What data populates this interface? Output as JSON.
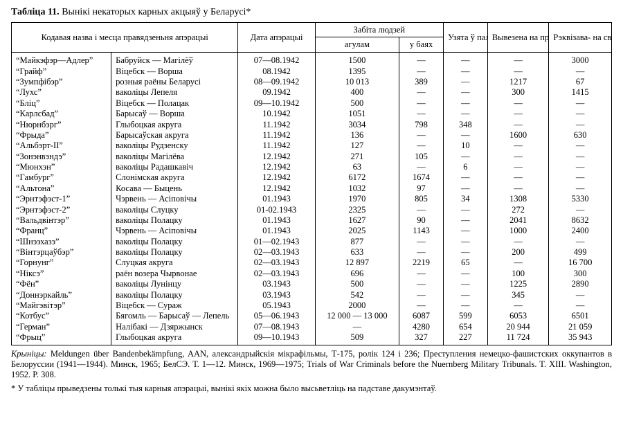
{
  "caption": {
    "bold": "Табліца 11.",
    "rest": " Вынікі некаторых карных акцыяў у Беларусі*"
  },
  "headers": {
    "h_code": "Кодавая назва і месца правядзеньня апэрацыі",
    "h_date": "Дата апэрацыі",
    "h_killed": "Забіта людзей",
    "h_killed_total": "агулам",
    "h_killed_battle": "у баях",
    "h_captured": "Узята ў палон",
    "h_deported": "Вывезена на працу ў Нямеччыну",
    "h_cattle": "Рэквізава- на свойскай жывёлы (галоў)"
  },
  "rows": [
    {
      "n": "“Майкэфэр—Адлер”",
      "p": "Бабруйск — Магілёў",
      "d": "07—08.1942",
      "k": "1500",
      "b": "—",
      "c": "—",
      "dep": "—",
      "cat": "3000"
    },
    {
      "n": "“Грайф”",
      "p": "Віцебск — Ворша",
      "d": "08.1942",
      "k": "1395",
      "b": "—",
      "c": "—",
      "dep": "—",
      "cat": "—"
    },
    {
      "n": "“Зумпфібэр”",
      "p": "розныя раёны Беларусі",
      "d": "08—09.1942",
      "k": "10 013",
      "b": "389",
      "c": "—",
      "dep": "1217",
      "cat": "67"
    },
    {
      "n": "“Лухс”",
      "p": "ваколіцы Лепеля",
      "d": "09.1942",
      "k": "400",
      "b": "—",
      "c": "—",
      "dep": "300",
      "cat": "1415"
    },
    {
      "n": "“Бліц”",
      "p": "Віцебск — Полацак",
      "d": "09—10.1942",
      "k": "500",
      "b": "—",
      "c": "—",
      "dep": "—",
      "cat": "—"
    },
    {
      "n": "“Карлсбад”",
      "p": "Барысаў — Ворша",
      "d": "10.1942",
      "k": "1051",
      "b": "—",
      "c": "—",
      "dep": "—",
      "cat": "—"
    },
    {
      "n": "“Нюрнбэрг”",
      "p": "Глыбоцкая акруга",
      "d": "11.1942",
      "k": "3034",
      "b": "798",
      "c": "348",
      "dep": "—",
      "cat": "—"
    },
    {
      "n": "“Фрыда”",
      "p": "Барысаўская акруга",
      "d": "11.1942",
      "k": "136",
      "b": "—",
      "c": "—",
      "dep": "1600",
      "cat": "630"
    },
    {
      "n": "“Альбэрт-ІІ”",
      "p": "ваколіцы Рудзенску",
      "d": "11.1942",
      "k": "127",
      "b": "—",
      "c": "10",
      "dep": "—",
      "cat": "—"
    },
    {
      "n": "“Зонэнвэндэ”",
      "p": "ваколіцы Магілёва",
      "d": "12.1942",
      "k": "271",
      "b": "105",
      "c": "—",
      "dep": "—",
      "cat": "—"
    },
    {
      "n": "“Мюнхэн”",
      "p": "ваколіцы Радашкавіч",
      "d": "12.1942",
      "k": "63",
      "b": "—",
      "c": "6",
      "dep": "—",
      "cat": "—"
    },
    {
      "n": "“Гамбург”",
      "p": "Слонімская акруга",
      "d": "12.1942",
      "k": "6172",
      "b": "1674",
      "c": "—",
      "dep": "—",
      "cat": "—"
    },
    {
      "n": "“Альтона”",
      "p": "Косава — Быцень",
      "d": "12.1942",
      "k": "1032",
      "b": "97",
      "c": "—",
      "dep": "—",
      "cat": "—"
    },
    {
      "n": "“Эрнтэфэст-1”",
      "p": "Чэрвень — Асіповічы",
      "d": "01.1943",
      "k": "1970",
      "b": "805",
      "c": "34",
      "dep": "1308",
      "cat": "5330"
    },
    {
      "n": "“Эрнтэфэст-2”",
      "p": "ваколіцы Слуцку",
      "d": "01-02.1943",
      "k": "2325",
      "b": "—",
      "c": "—",
      "dep": "272",
      "cat": "—"
    },
    {
      "n": "“Вальдвінтэр”",
      "p": "ваколіцы Полацку",
      "d": "01.1943",
      "k": "1627",
      "b": "90",
      "c": "—",
      "dep": "2041",
      "cat": "8632"
    },
    {
      "n": "“Франц”",
      "p": "Чэрвень — Асіповічы",
      "d": "01.1943",
      "k": "2025",
      "b": "1143",
      "c": "—",
      "dep": "1000",
      "cat": "2400"
    },
    {
      "n": "“Шнээхазэ”",
      "p": "ваколіцы Полацку",
      "d": "01—02.1943",
      "k": "877",
      "b": "—",
      "c": "—",
      "dep": "—",
      "cat": "—"
    },
    {
      "n": "“Вінтэрцаўбэр”",
      "p": "ваколіцы Полацку",
      "d": "02—03.1943",
      "k": "633",
      "b": "—",
      "c": "—",
      "dep": "200",
      "cat": "499"
    },
    {
      "n": "“Горнунг”",
      "p": "Слуцкая акруга",
      "d": "02—03.1943",
      "k": "12 897",
      "b": "2219",
      "c": "65",
      "dep": "—",
      "cat": "16 700"
    },
    {
      "n": "“Ніксэ”",
      "p": "раён возера Чырвонае",
      "d": "02—03.1943",
      "k": "696",
      "b": "—",
      "c": "—",
      "dep": "100",
      "cat": "300"
    },
    {
      "n": "“Фён”",
      "p": "ваколіцы Лунінцу",
      "d": "03.1943",
      "k": "500",
      "b": "—",
      "c": "—",
      "dep": "1225",
      "cat": "2890"
    },
    {
      "n": "“Доннэркайль”",
      "p": "ваколіцы Полацку",
      "d": "03.1943",
      "k": "542",
      "b": "—",
      "c": "—",
      "dep": "345",
      "cat": "—"
    },
    {
      "n": "“Майгэвітэр”",
      "p": "Віцебск — Сураж",
      "d": "05.1943",
      "k": "2000",
      "b": "—",
      "c": "—",
      "dep": "—",
      "cat": "—"
    },
    {
      "n": "“Котбус”",
      "p": "Бягомль — Барысаў — Лепель",
      "d": "05—06.1943",
      "k": "12 000 — 13 000",
      "b": "6087",
      "c": "599",
      "dep": "6053",
      "cat": "6501"
    },
    {
      "n": "“Герман”",
      "p": "Налібакі — Дзяржынск",
      "d": "07—08.1943",
      "k": "—",
      "b": "4280",
      "c": "654",
      "dep": "20 944",
      "cat": "21 059"
    },
    {
      "n": "“Фрыц”",
      "p": "Глыбоцкая акруга",
      "d": "09—10.1943",
      "k": "509",
      "b": "327",
      "c": "227",
      "dep": "11 724",
      "cat": "35 943"
    }
  ],
  "notes": {
    "sources_label": "Крыніцы:",
    "sources_text": " Meldungen über Bandenbekämpfung, AAN, александрыйскія мікрафільмы, Т-175, ролік 124 і 236; Преступления немецко-фашистских оккупантов в Белоруссии (1941—1944). Минск, 1965; БелСЭ. Т. 1—12. Минск, 1969—1975; Trials of War Criminals before the Nuernberg Military Tribunals. T. XIII. Washington, 1952. P. 308.",
    "footnote": "* У табліцы прыведзены толькі тыя карныя апэрацыі, вынікі якіх можна было высьветліць на падставе дакумэнтаў."
  }
}
